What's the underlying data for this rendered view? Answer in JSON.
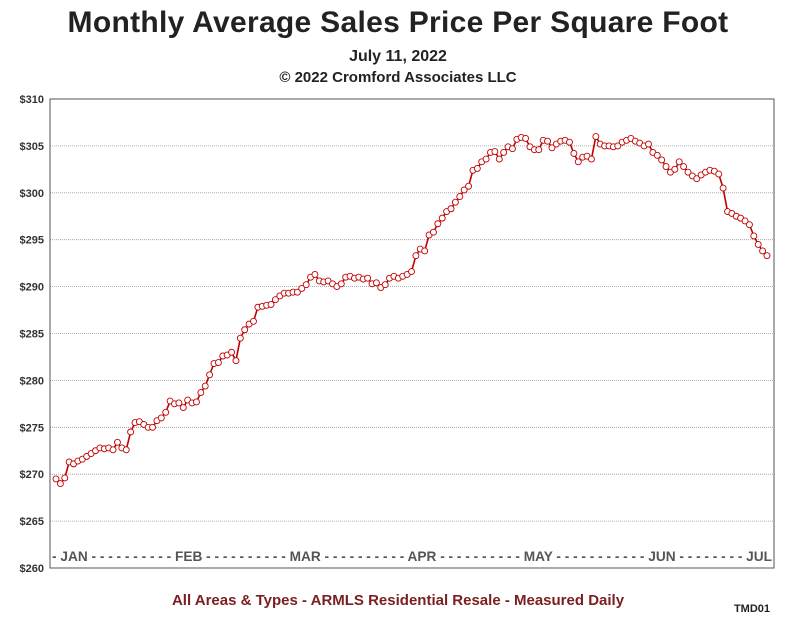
{
  "header": {
    "title": "Monthly Average Sales Price Per Square Foot",
    "date": "July 11, 2022",
    "copyright": "© 2022 Cromford Associates LLC"
  },
  "footer": {
    "note": "All Areas & Types - ARMLS Residential Resale - Measured Daily",
    "code": "TMD01"
  },
  "chart_data": {
    "type": "line",
    "ylim": [
      260,
      310
    ],
    "y_ticks": [
      "$260",
      "$265",
      "$270",
      "$275",
      "$280",
      "$285",
      "$290",
      "$295",
      "$300",
      "$305",
      "$310"
    ],
    "x_axis_text": "- JAN - - - - - - - - - - FEB - - - - - - - - - - MAR - - - - - - - - - - APR - - - - - - - - - - MAY - - - - - - - - - - - JUN - - - - - - - - JUL",
    "grid": "horizontal",
    "line_color": "#c00000",
    "marker_fill": "#ffffff",
    "x_start": "2022-01-01",
    "x_end": "2022-07-11",
    "series": [
      {
        "values": [
          269.5,
          269.0,
          269.6,
          271.3,
          271.1,
          271.4,
          271.6,
          271.9,
          272.2,
          272.5,
          272.8,
          272.7,
          272.8,
          272.6,
          273.4,
          272.8,
          272.6,
          274.5,
          275.5,
          275.6,
          275.3,
          275.0,
          275.0,
          275.7,
          276.0,
          276.6,
          277.8,
          277.5,
          277.6,
          277.1,
          277.9,
          277.6,
          277.7,
          278.7,
          279.4,
          280.6,
          281.8,
          281.9,
          282.6,
          282.7,
          283.0,
          282.1,
          284.5,
          285.4,
          286.0,
          286.3,
          287.8,
          287.9,
          288.0,
          288.1,
          288.6,
          289.0,
          289.3,
          289.3,
          289.4,
          289.4,
          289.8,
          290.2,
          291.0,
          291.3,
          290.6,
          290.5,
          290.6,
          290.3,
          290.0,
          290.3,
          291.0,
          291.1,
          290.9,
          291.0,
          290.8,
          290.9,
          290.3,
          290.4,
          289.9,
          290.2,
          290.9,
          291.1,
          290.9,
          291.1,
          291.3,
          291.6,
          293.3,
          294.0,
          293.8,
          295.5,
          295.8,
          296.7,
          297.3,
          298.0,
          298.3,
          299.0,
          299.6,
          300.3,
          300.7,
          302.4,
          302.6,
          303.3,
          303.6,
          304.3,
          304.4,
          303.6,
          304.3,
          304.9,
          304.7,
          305.7,
          305.9,
          305.8,
          304.9,
          304.6,
          304.6,
          305.6,
          305.5,
          304.8,
          305.2,
          305.5,
          305.6,
          305.4,
          304.2,
          303.3,
          303.8,
          303.9,
          303.6,
          306.0,
          305.2,
          305.0,
          305.0,
          304.9,
          305.0,
          305.4,
          305.6,
          305.8,
          305.5,
          305.3,
          305.0,
          305.2,
          304.3,
          304.0,
          303.5,
          302.8,
          302.2,
          302.5,
          303.3,
          302.8,
          302.2,
          301.8,
          301.5,
          301.9,
          302.2,
          302.4,
          302.3,
          302.0,
          300.5,
          298.0,
          297.8,
          297.5,
          297.3,
          297.0,
          296.6,
          295.4,
          294.5,
          293.8,
          293.3
        ]
      }
    ]
  }
}
